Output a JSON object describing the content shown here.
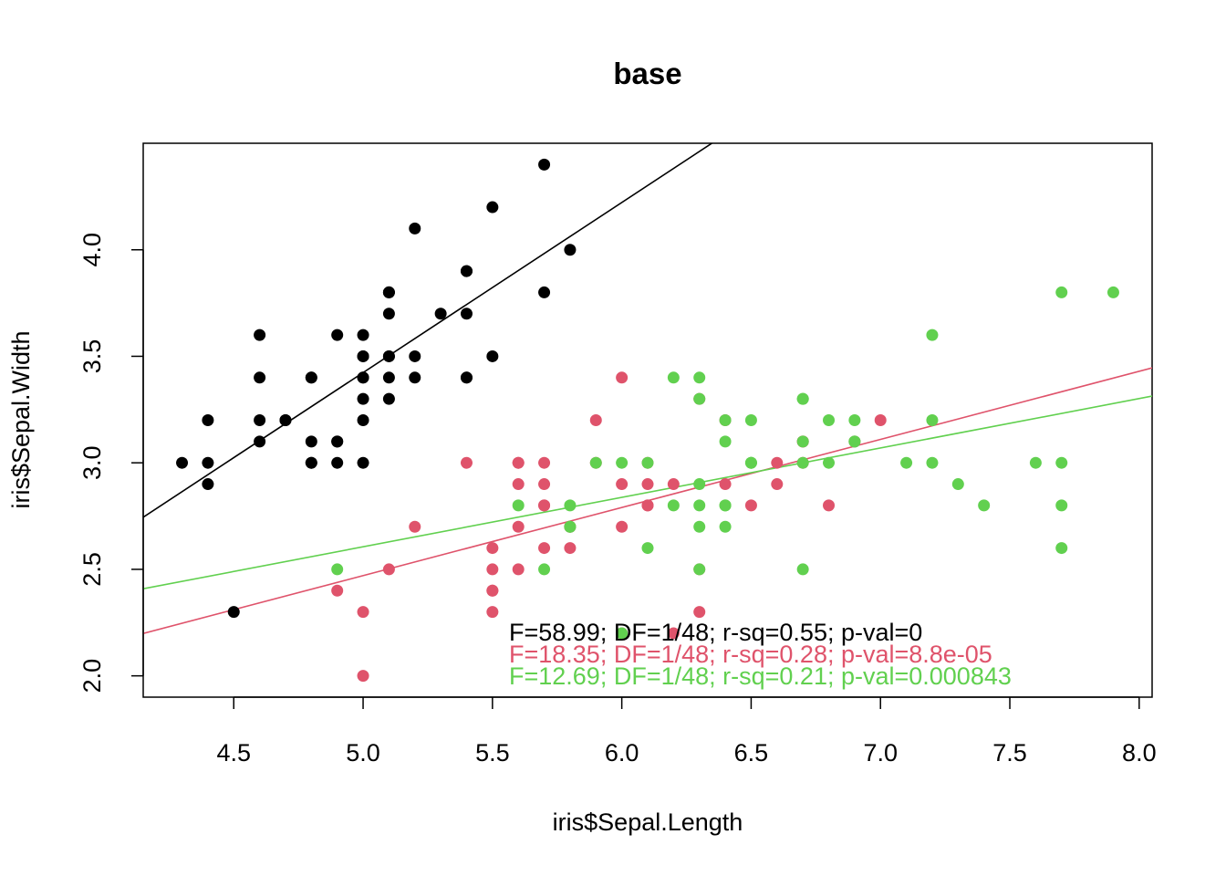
{
  "chart_data": {
    "type": "scatter",
    "title": "base",
    "xlabel": "iris$Sepal.Length",
    "ylabel": "iris$Sepal.Width",
    "xlim": [
      4.15,
      8.05
    ],
    "ylim": [
      1.9,
      4.5
    ],
    "xticks": [
      4.5,
      5.0,
      5.5,
      6.0,
      6.5,
      7.0,
      7.5,
      8.0
    ],
    "xtick_labels": [
      "4.5",
      "5.0",
      "5.5",
      "6.0",
      "6.5",
      "7.0",
      "7.5",
      "8.0"
    ],
    "yticks": [
      2.0,
      2.5,
      3.0,
      3.5,
      4.0
    ],
    "ytick_labels": [
      "2.0",
      "2.5",
      "3.0",
      "3.5",
      "4.0"
    ],
    "grid": false,
    "series": [
      {
        "color": "#000000",
        "fit": {
          "intercept": -0.569,
          "slope": 0.7985
        },
        "annotation": "F=58.99; DF=1/48; r-sq=0.55; p-val=0",
        "points": [
          [
            5.1,
            3.5
          ],
          [
            4.9,
            3.0
          ],
          [
            4.7,
            3.2
          ],
          [
            4.6,
            3.1
          ],
          [
            5.0,
            3.6
          ],
          [
            5.4,
            3.9
          ],
          [
            4.6,
            3.4
          ],
          [
            5.0,
            3.4
          ],
          [
            4.4,
            2.9
          ],
          [
            4.9,
            3.1
          ],
          [
            5.4,
            3.7
          ],
          [
            4.8,
            3.4
          ],
          [
            4.8,
            3.0
          ],
          [
            4.3,
            3.0
          ],
          [
            5.8,
            4.0
          ],
          [
            5.7,
            4.4
          ],
          [
            5.4,
            3.9
          ],
          [
            5.1,
            3.5
          ],
          [
            5.7,
            3.8
          ],
          [
            5.1,
            3.8
          ],
          [
            5.4,
            3.4
          ],
          [
            5.1,
            3.7
          ],
          [
            4.6,
            3.6
          ],
          [
            5.1,
            3.3
          ],
          [
            4.8,
            3.4
          ],
          [
            5.0,
            3.0
          ],
          [
            5.0,
            3.4
          ],
          [
            5.2,
            3.5
          ],
          [
            5.2,
            3.4
          ],
          [
            4.7,
            3.2
          ],
          [
            4.8,
            3.1
          ],
          [
            5.4,
            3.4
          ],
          [
            5.2,
            4.1
          ],
          [
            5.5,
            4.2
          ],
          [
            4.9,
            3.1
          ],
          [
            5.0,
            3.2
          ],
          [
            5.5,
            3.5
          ],
          [
            4.9,
            3.6
          ],
          [
            4.4,
            3.0
          ],
          [
            5.1,
            3.4
          ],
          [
            5.0,
            3.5
          ],
          [
            4.5,
            2.3
          ],
          [
            4.4,
            3.2
          ],
          [
            5.0,
            3.5
          ],
          [
            5.1,
            3.8
          ],
          [
            4.8,
            3.0
          ],
          [
            5.1,
            3.8
          ],
          [
            4.6,
            3.2
          ],
          [
            5.3,
            3.7
          ],
          [
            5.0,
            3.3
          ]
        ]
      },
      {
        "color": "#DF536B",
        "fit": {
          "intercept": 0.872,
          "slope": 0.3197
        },
        "annotation": "F=18.35; DF=1/48; r-sq=0.28; p-val=8.8e-05",
        "points": [
          [
            7.0,
            3.2
          ],
          [
            6.4,
            3.2
          ],
          [
            6.9,
            3.1
          ],
          [
            5.5,
            2.3
          ],
          [
            6.5,
            2.8
          ],
          [
            5.7,
            2.8
          ],
          [
            6.3,
            3.3
          ],
          [
            4.9,
            2.4
          ],
          [
            6.6,
            2.9
          ],
          [
            5.2,
            2.7
          ],
          [
            5.0,
            2.0
          ],
          [
            5.9,
            3.0
          ],
          [
            6.0,
            2.2
          ],
          [
            6.1,
            2.9
          ],
          [
            5.6,
            2.9
          ],
          [
            6.7,
            3.1
          ],
          [
            5.6,
            3.0
          ],
          [
            5.8,
            2.7
          ],
          [
            6.2,
            2.2
          ],
          [
            5.6,
            2.5
          ],
          [
            5.9,
            3.2
          ],
          [
            6.1,
            2.8
          ],
          [
            6.3,
            2.5
          ],
          [
            6.1,
            2.8
          ],
          [
            6.4,
            2.9
          ],
          [
            6.6,
            3.0
          ],
          [
            6.8,
            2.8
          ],
          [
            6.7,
            3.0
          ],
          [
            6.0,
            2.9
          ],
          [
            5.7,
            2.6
          ],
          [
            5.5,
            2.4
          ],
          [
            5.5,
            2.4
          ],
          [
            5.8,
            2.7
          ],
          [
            6.0,
            2.7
          ],
          [
            5.4,
            3.0
          ],
          [
            6.0,
            3.4
          ],
          [
            6.7,
            3.1
          ],
          [
            6.3,
            2.3
          ],
          [
            5.6,
            3.0
          ],
          [
            5.5,
            2.5
          ],
          [
            5.5,
            2.6
          ],
          [
            6.1,
            3.0
          ],
          [
            5.8,
            2.6
          ],
          [
            5.0,
            2.3
          ],
          [
            5.6,
            2.7
          ],
          [
            5.7,
            3.0
          ],
          [
            5.7,
            2.9
          ],
          [
            6.2,
            2.9
          ],
          [
            5.1,
            2.5
          ],
          [
            5.7,
            2.8
          ]
        ]
      },
      {
        "color": "#61D04F",
        "fit": {
          "intercept": 1.4463,
          "slope": 0.2319
        },
        "annotation": "F=12.69; DF=1/48; r-sq=0.21; p-val=0.000843",
        "points": [
          [
            6.3,
            3.3
          ],
          [
            5.8,
            2.7
          ],
          [
            7.1,
            3.0
          ],
          [
            6.3,
            2.9
          ],
          [
            6.5,
            3.0
          ],
          [
            7.6,
            3.0
          ],
          [
            4.9,
            2.5
          ],
          [
            7.3,
            2.9
          ],
          [
            6.7,
            2.5
          ],
          [
            7.2,
            3.6
          ],
          [
            6.5,
            3.2
          ],
          [
            6.4,
            2.7
          ],
          [
            6.8,
            3.0
          ],
          [
            5.7,
            2.5
          ],
          [
            5.8,
            2.8
          ],
          [
            6.4,
            3.2
          ],
          [
            6.5,
            3.0
          ],
          [
            7.7,
            3.8
          ],
          [
            7.7,
            2.6
          ],
          [
            6.0,
            2.2
          ],
          [
            6.9,
            3.2
          ],
          [
            5.6,
            2.8
          ],
          [
            7.7,
            2.8
          ],
          [
            6.3,
            2.7
          ],
          [
            6.7,
            3.3
          ],
          [
            7.2,
            3.2
          ],
          [
            6.2,
            2.8
          ],
          [
            6.1,
            3.0
          ],
          [
            6.4,
            2.8
          ],
          [
            7.2,
            3.0
          ],
          [
            7.4,
            2.8
          ],
          [
            7.9,
            3.8
          ],
          [
            6.4,
            2.8
          ],
          [
            6.3,
            2.8
          ],
          [
            6.1,
            2.6
          ],
          [
            7.7,
            3.0
          ],
          [
            6.3,
            3.4
          ],
          [
            6.4,
            3.1
          ],
          [
            6.0,
            3.0
          ],
          [
            6.9,
            3.1
          ],
          [
            6.7,
            3.1
          ],
          [
            6.9,
            3.1
          ],
          [
            5.8,
            2.7
          ],
          [
            6.8,
            3.2
          ],
          [
            6.7,
            3.3
          ],
          [
            6.7,
            3.0
          ],
          [
            6.3,
            2.5
          ],
          [
            6.5,
            3.0
          ],
          [
            6.2,
            3.4
          ],
          [
            5.9,
            3.0
          ]
        ]
      }
    ]
  }
}
